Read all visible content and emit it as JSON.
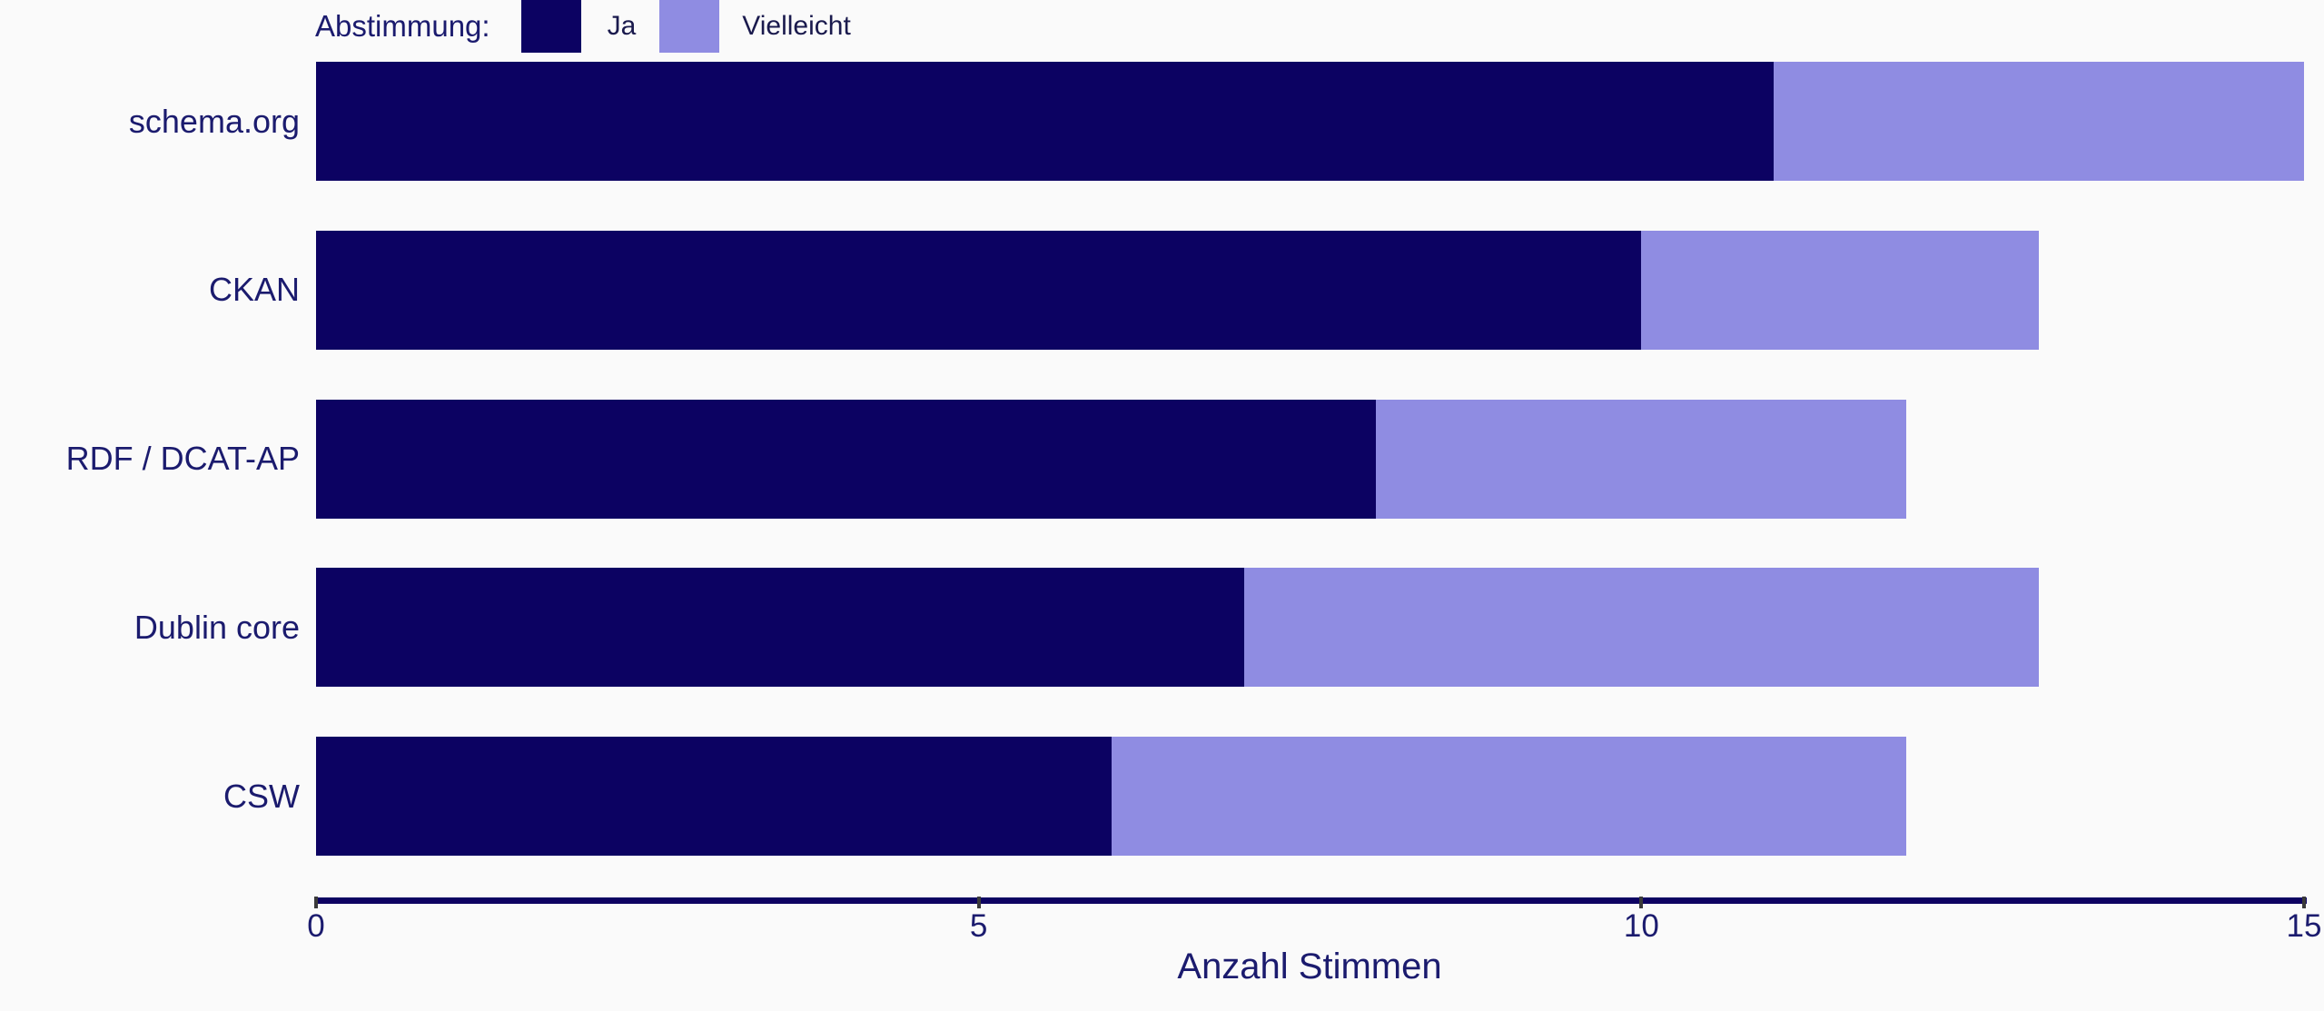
{
  "legend": {
    "title": "Abstimmung:",
    "items": [
      {
        "label": "Ja",
        "color": "#0c0262"
      },
      {
        "label": "Vielleicht",
        "color": "#8f8ce2"
      }
    ]
  },
  "chart_data": {
    "type": "bar",
    "orientation": "horizontal",
    "stacked": true,
    "title": "",
    "categories": [
      "schema.org",
      "CKAN",
      "RDF / DCAT-AP",
      "Dublin core",
      "CSW"
    ],
    "series": [
      {
        "name": "Ja",
        "color": "#0c0262",
        "values": [
          11,
          10,
          8,
          7,
          6
        ]
      },
      {
        "name": "Vielleicht",
        "color": "#8f8ce2",
        "values": [
          4,
          3,
          4,
          6,
          6
        ]
      }
    ],
    "totals": [
      15,
      13,
      12,
      13,
      12
    ],
    "xlabel": "Anzahl Stimmen",
    "ylabel": "",
    "xlim": [
      0,
      15
    ],
    "xticks": [
      0,
      5,
      10,
      15
    ],
    "grid": false,
    "legend_position": "top-left"
  },
  "colors": {
    "background": "#fafafa",
    "text": "#1b1b6e",
    "legend_item_text": "#1a1a4d",
    "axis_line": "#0d0262",
    "tick_mark": "#3a3a3a"
  }
}
